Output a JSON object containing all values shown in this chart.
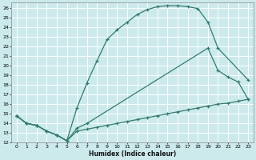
{
  "xlabel": "Humidex (Indice chaleur)",
  "bg_color": "#cceaec",
  "grid_color": "#ffffff",
  "line_color": "#2d7d6e",
  "xlim": [
    -0.5,
    23.5
  ],
  "ylim": [
    12,
    26.5
  ],
  "xticks": [
    0,
    1,
    2,
    3,
    4,
    5,
    6,
    7,
    8,
    9,
    10,
    11,
    12,
    13,
    14,
    15,
    16,
    17,
    18,
    19,
    20,
    21,
    22,
    23
  ],
  "yticks": [
    12,
    13,
    14,
    15,
    16,
    17,
    18,
    19,
    20,
    21,
    22,
    23,
    24,
    25,
    26
  ],
  "line1_x": [
    0,
    1,
    2,
    3,
    4,
    5,
    6,
    7,
    8,
    9,
    10,
    11,
    12,
    13,
    14,
    15,
    16,
    17,
    18,
    19,
    20,
    23
  ],
  "line1_y": [
    14.8,
    14.0,
    13.8,
    13.2,
    12.8,
    12.2,
    15.6,
    18.2,
    20.5,
    22.7,
    23.7,
    24.5,
    25.3,
    25.8,
    26.1,
    26.2,
    26.2,
    26.1,
    25.9,
    24.5,
    21.8,
    18.5
  ],
  "line2_x": [
    0,
    1,
    2,
    3,
    4,
    5,
    6,
    7,
    19,
    20,
    21,
    22,
    23
  ],
  "line2_y": [
    14.8,
    14.0,
    13.8,
    13.2,
    12.8,
    12.2,
    13.5,
    14.0,
    21.8,
    19.5,
    18.8,
    18.3,
    16.5
  ],
  "line3_x": [
    0,
    1,
    2,
    3,
    4,
    5,
    6,
    7,
    8,
    9,
    10,
    11,
    12,
    13,
    14,
    15,
    16,
    17,
    18,
    19,
    20,
    21,
    22,
    23
  ],
  "line3_y": [
    14.8,
    14.0,
    13.8,
    13.2,
    12.8,
    12.2,
    13.2,
    13.4,
    13.6,
    13.8,
    14.0,
    14.2,
    14.4,
    14.6,
    14.8,
    15.0,
    15.2,
    15.4,
    15.6,
    15.8,
    16.0,
    16.1,
    16.3,
    16.5
  ]
}
